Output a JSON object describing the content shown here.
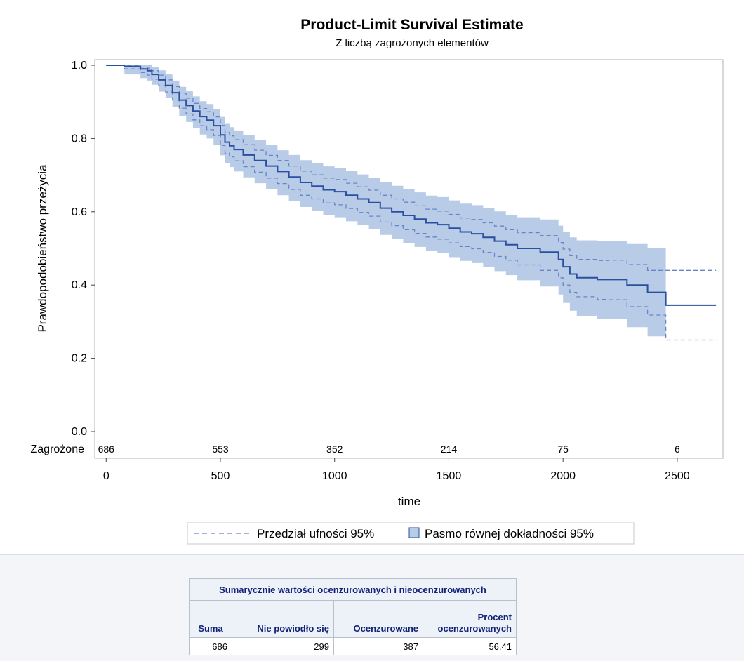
{
  "chart_data": {
    "type": "line",
    "title": "Product-Limit Survival Estimate",
    "subtitle": "Z liczbą zagrożonych elementów",
    "xlabel": "time",
    "ylabel": "Prawdopodobieństwo przeżycia",
    "xlim": [
      -50,
      2700
    ],
    "ylim": [
      0.0,
      1.0
    ],
    "x_ticks": [
      0,
      500,
      1000,
      1500,
      2000,
      2500
    ],
    "y_ticks": [
      0.0,
      0.2,
      0.4,
      0.6,
      0.8,
      1.0
    ],
    "y_tick_labels": [
      "0.0",
      "0.2",
      "0.4",
      "0.6",
      "0.8",
      "1.0"
    ],
    "grid": false,
    "legend_position": "bottom",
    "colors": {
      "line": "#2a4fa0",
      "band": "#b8cce8",
      "ci": "#6b84c8"
    },
    "series": [
      {
        "name": "",
        "x": [
          0,
          80,
          150,
          180,
          200,
          230,
          260,
          290,
          320,
          350,
          380,
          410,
          440,
          470,
          500,
          520,
          540,
          560,
          600,
          650,
          700,
          750,
          800,
          850,
          900,
          950,
          1000,
          1050,
          1100,
          1150,
          1200,
          1250,
          1300,
          1350,
          1400,
          1450,
          1500,
          1550,
          1600,
          1650,
          1700,
          1750,
          1800,
          1900,
          1980,
          2000,
          2030,
          2060,
          2150,
          2200,
          2280,
          2370,
          2450,
          2670
        ],
        "y": [
          1.0,
          0.997,
          0.99,
          0.985,
          0.975,
          0.96,
          0.945,
          0.925,
          0.905,
          0.89,
          0.875,
          0.86,
          0.85,
          0.835,
          0.81,
          0.79,
          0.78,
          0.77,
          0.755,
          0.74,
          0.725,
          0.71,
          0.695,
          0.68,
          0.67,
          0.66,
          0.655,
          0.645,
          0.635,
          0.625,
          0.61,
          0.6,
          0.59,
          0.58,
          0.57,
          0.565,
          0.555,
          0.545,
          0.54,
          0.53,
          0.52,
          0.51,
          0.5,
          0.49,
          0.47,
          0.45,
          0.43,
          0.42,
          0.415,
          0.415,
          0.4,
          0.38,
          0.345,
          0.345
        ]
      },
      {
        "name": "Przedział ufności 95%",
        "role": "pointwise_ci",
        "x": [
          0,
          80,
          150,
          180,
          200,
          230,
          260,
          290,
          320,
          350,
          380,
          410,
          440,
          470,
          500,
          520,
          540,
          560,
          600,
          650,
          700,
          750,
          800,
          850,
          900,
          950,
          1000,
          1050,
          1100,
          1150,
          1200,
          1250,
          1300,
          1350,
          1400,
          1450,
          1500,
          1550,
          1600,
          1650,
          1700,
          1750,
          1800,
          1900,
          1980,
          2000,
          2030,
          2060,
          2150,
          2200,
          2280,
          2370,
          2450,
          2670
        ],
        "upper": [
          1.0,
          1.0,
          0.995,
          0.992,
          0.985,
          0.973,
          0.96,
          0.942,
          0.924,
          0.91,
          0.896,
          0.882,
          0.873,
          0.859,
          0.836,
          0.817,
          0.807,
          0.797,
          0.783,
          0.768,
          0.754,
          0.74,
          0.725,
          0.711,
          0.701,
          0.692,
          0.688,
          0.678,
          0.668,
          0.659,
          0.645,
          0.635,
          0.626,
          0.616,
          0.607,
          0.602,
          0.593,
          0.583,
          0.579,
          0.57,
          0.561,
          0.551,
          0.543,
          0.535,
          0.516,
          0.498,
          0.48,
          0.47,
          0.467,
          0.468,
          0.456,
          0.44,
          0.44,
          0.44
        ],
        "lower": [
          1.0,
          0.99,
          0.98,
          0.973,
          0.962,
          0.944,
          0.927,
          0.905,
          0.883,
          0.867,
          0.851,
          0.835,
          0.824,
          0.808,
          0.781,
          0.76,
          0.75,
          0.739,
          0.723,
          0.708,
          0.692,
          0.677,
          0.661,
          0.645,
          0.635,
          0.624,
          0.619,
          0.609,
          0.598,
          0.588,
          0.572,
          0.562,
          0.551,
          0.541,
          0.531,
          0.525,
          0.515,
          0.505,
          0.499,
          0.489,
          0.478,
          0.468,
          0.455,
          0.44,
          0.42,
          0.4,
          0.38,
          0.368,
          0.361,
          0.36,
          0.341,
          0.318,
          0.25,
          0.25
        ]
      },
      {
        "name": "Pasmo równej dokładności 95%",
        "role": "equal_precision_band",
        "x": [
          0,
          80,
          150,
          180,
          200,
          230,
          260,
          290,
          320,
          350,
          380,
          410,
          440,
          470,
          500,
          520,
          540,
          560,
          600,
          650,
          700,
          750,
          800,
          850,
          900,
          950,
          1000,
          1050,
          1100,
          1150,
          1200,
          1250,
          1300,
          1350,
          1400,
          1450,
          1500,
          1550,
          1600,
          1650,
          1700,
          1750,
          1800,
          1900,
          1980,
          2000,
          2030,
          2060,
          2150,
          2200,
          2280,
          2370,
          2450
        ],
        "upper": [
          1.0,
          1.0,
          1.0,
          1.0,
          0.996,
          0.986,
          0.975,
          0.958,
          0.941,
          0.929,
          0.915,
          0.902,
          0.894,
          0.881,
          0.859,
          0.84,
          0.831,
          0.822,
          0.809,
          0.795,
          0.782,
          0.768,
          0.755,
          0.741,
          0.732,
          0.724,
          0.72,
          0.711,
          0.702,
          0.693,
          0.68,
          0.671,
          0.662,
          0.653,
          0.644,
          0.64,
          0.631,
          0.622,
          0.618,
          0.61,
          0.601,
          0.592,
          0.585,
          0.579,
          0.562,
          0.545,
          0.53,
          0.522,
          0.52,
          0.52,
          0.512,
          0.5,
          0.5
        ],
        "lower": [
          1.0,
          0.975,
          0.965,
          0.958,
          0.947,
          0.928,
          0.91,
          0.886,
          0.862,
          0.845,
          0.828,
          0.811,
          0.8,
          0.783,
          0.754,
          0.733,
          0.722,
          0.71,
          0.694,
          0.678,
          0.661,
          0.645,
          0.629,
          0.613,
          0.602,
          0.591,
          0.585,
          0.574,
          0.564,
          0.553,
          0.537,
          0.526,
          0.515,
          0.504,
          0.493,
          0.487,
          0.476,
          0.466,
          0.46,
          0.449,
          0.438,
          0.427,
          0.413,
          0.396,
          0.374,
          0.351,
          0.33,
          0.316,
          0.308,
          0.307,
          0.285,
          0.26,
          0.26
        ]
      }
    ],
    "at_risk": {
      "label": "Zagrożone",
      "x": [
        0,
        500,
        1000,
        1500,
        2000,
        2500
      ],
      "values": [
        "686",
        "553",
        "352",
        "214",
        "75",
        "6"
      ]
    },
    "legend": {
      "ci_label": "Przedział ufności 95%",
      "band_label": "Pasmo równej dokładności 95%"
    }
  },
  "summary_table": {
    "caption": "Sumarycznie wartości ocenzurowanych i nieocenzurowanych",
    "headers": [
      "Suma",
      "Nie powiodło się",
      "Ocenzurowane",
      "Procent ocenzurowanych"
    ],
    "row": [
      "686",
      "299",
      "387",
      "56.41"
    ]
  }
}
